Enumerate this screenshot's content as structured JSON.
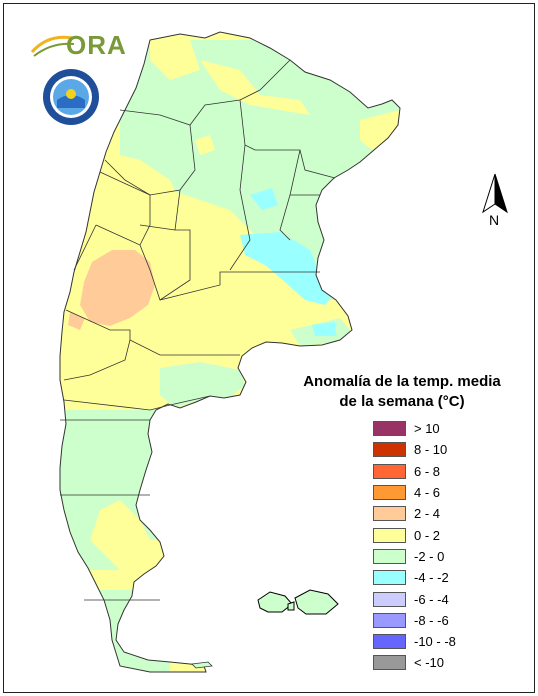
{
  "logo": {
    "text": "ORA"
  },
  "seal": {
    "name": "Servicio Meteorológico Nacional seal"
  },
  "north_arrow": {
    "label": "N"
  },
  "legend": {
    "title_line1": "Anomalía de la temp. media",
    "title_line2": "de la semana (°C)",
    "items": [
      {
        "label": "> 10",
        "color": "#993366"
      },
      {
        "label": "8 - 10",
        "color": "#cc3300"
      },
      {
        "label": "6 - 8",
        "color": "#ff6633"
      },
      {
        "label": "4 - 6",
        "color": "#ff9933"
      },
      {
        "label": "2 - 4",
        "color": "#ffcc99"
      },
      {
        "label": "0 - 2",
        "color": "#ffff99"
      },
      {
        "label": "-2 - 0",
        "color": "#ccffcc"
      },
      {
        "label": "-4 - -2",
        "color": "#99ffff"
      },
      {
        "label": "-6 - -4",
        "color": "#ccccff"
      },
      {
        "label": "-8 - -6",
        "color": "#9999ff"
      },
      {
        "label": "-10 - -8",
        "color": "#6666ff"
      },
      {
        "label": "< -10",
        "color": "#999999"
      }
    ]
  }
}
